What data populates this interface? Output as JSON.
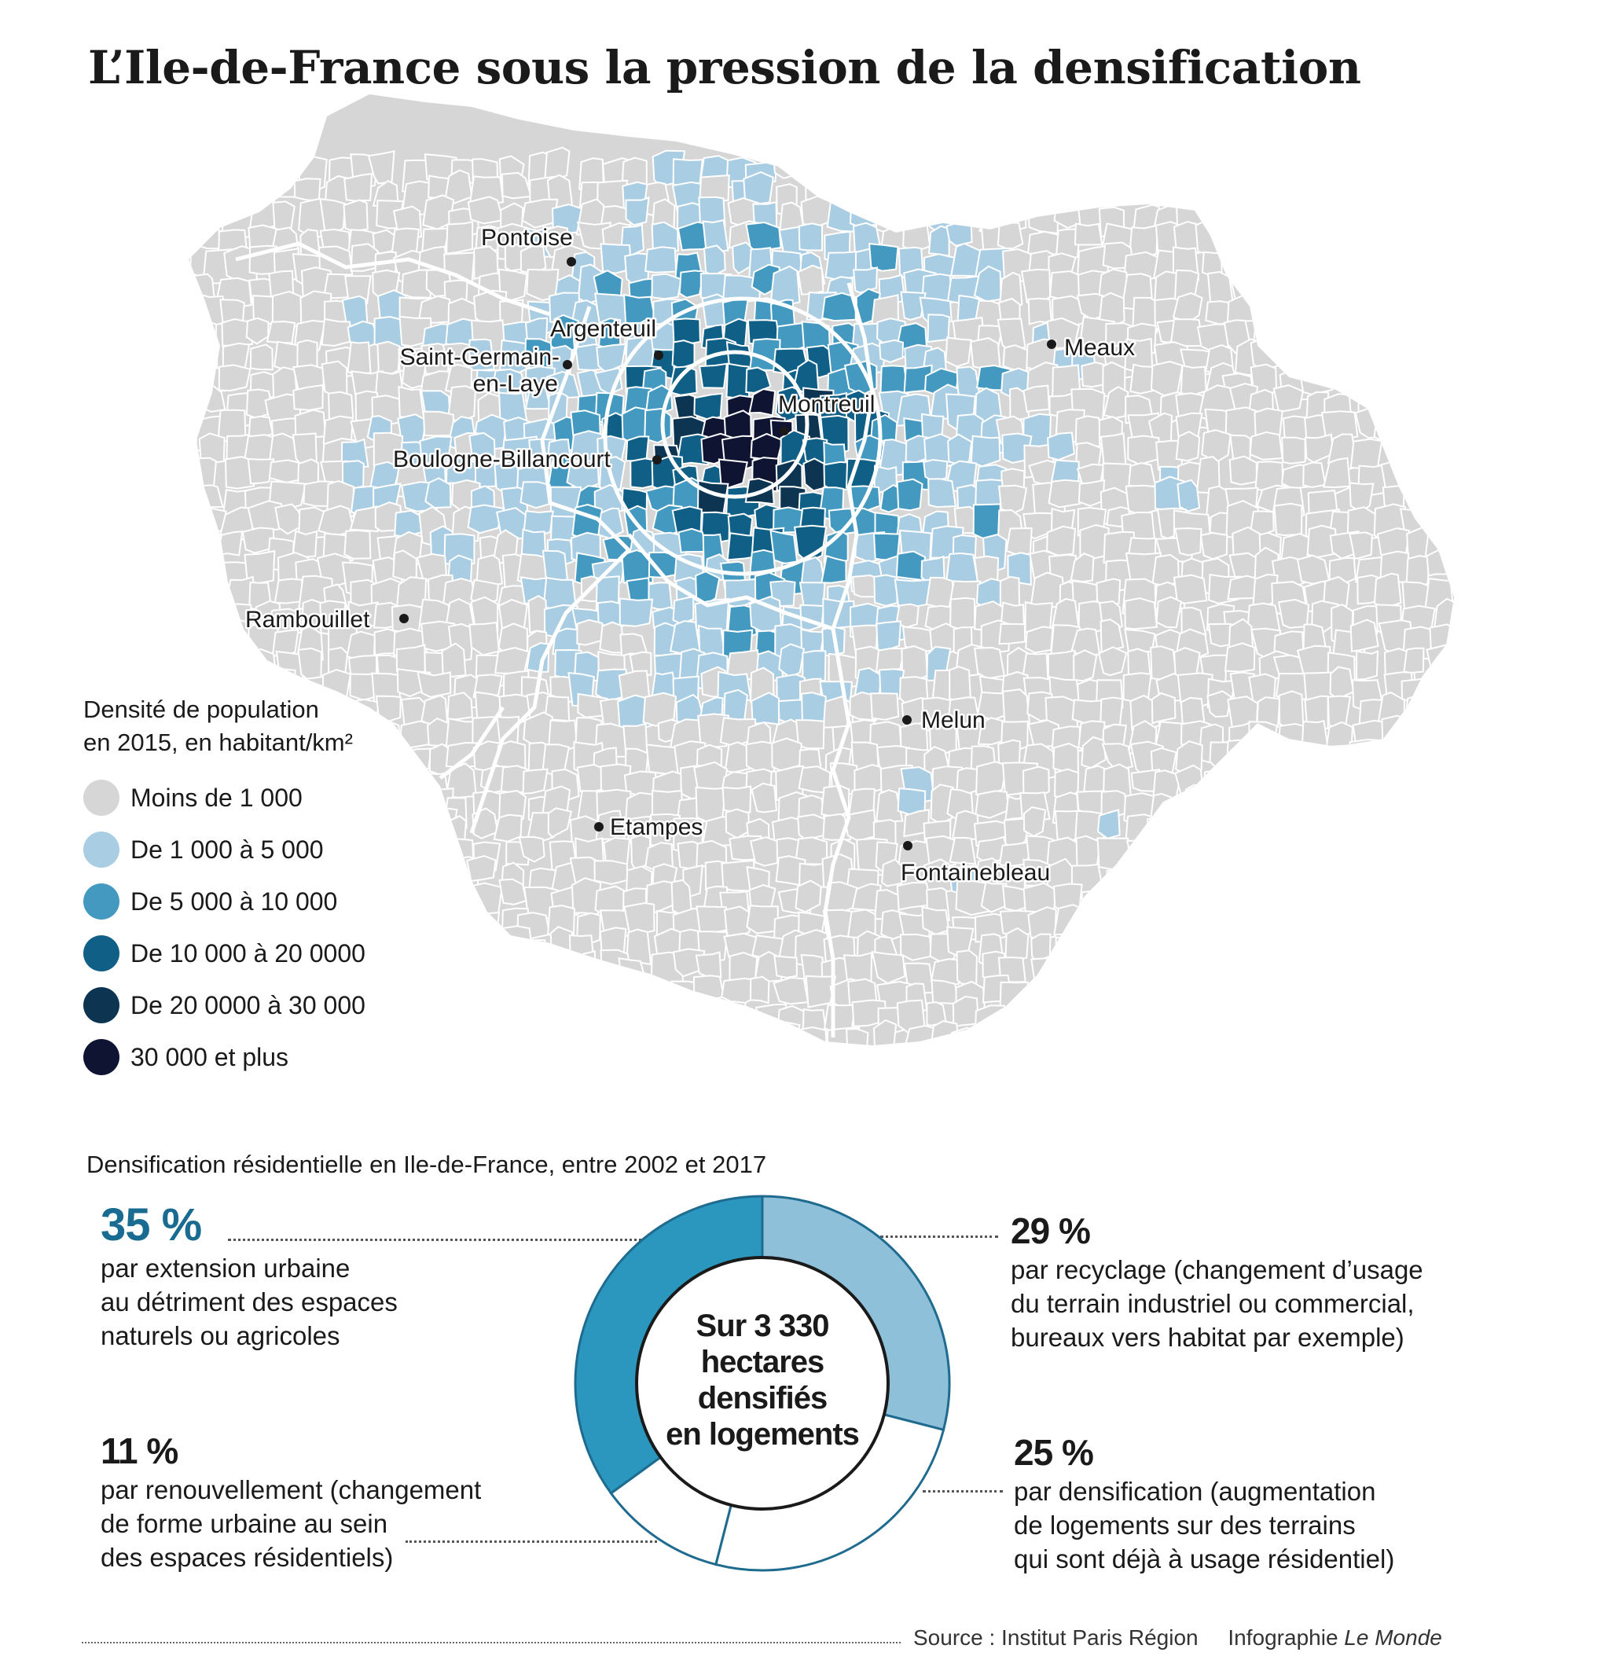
{
  "title": "L’Ile-de-France sous la pression de la densification",
  "colors": {
    "land": "#d6d6d6",
    "border": "#ffffff",
    "density": [
      "#d6d6d6",
      "#a9cde3",
      "#4399bf",
      "#0f5f87",
      "#0d3552",
      "#0f1433"
    ]
  },
  "cities": [
    {
      "name": "Pontoise"
    },
    {
      "name": "Argenteuil"
    },
    {
      "name": "Saint-Germain-\nen-Laye"
    },
    {
      "name": "Montreuil"
    },
    {
      "name": "Boulogne-Billancourt"
    },
    {
      "name": "Meaux"
    },
    {
      "name": "Rambouillet"
    },
    {
      "name": "Melun"
    },
    {
      "name": "Etampes"
    },
    {
      "name": "Fontainebleau"
    }
  ],
  "legend": {
    "title_line1": "Densité de population",
    "title_line2": "en 2015, en habitant/km²",
    "items": [
      {
        "label": "Moins de 1 000",
        "color": "#d6d6d6"
      },
      {
        "label": "De 1 000 à 5 000",
        "color": "#a9cde3"
      },
      {
        "label": "De 5 000 à 10 000",
        "color": "#4399bf"
      },
      {
        "label": "De 10 000 à 20 0000",
        "color": "#0f5f87"
      },
      {
        "label": "De  20 0000 à 30 000",
        "color": "#0d3552"
      },
      {
        "label": "30 000 et plus",
        "color": "#0f1433"
      }
    ]
  },
  "densification": {
    "subtitle": "Densification résidentielle en Ile-de-France, entre 2002 et 2017",
    "center_lines": [
      "Sur 3 330",
      "hectares",
      "densifiés",
      "en logements"
    ],
    "segments": [
      {
        "pct": "35 %",
        "value": 35,
        "color": "#2b97be",
        "lines": [
          "par extension urbaine",
          "au détriment des espaces",
          "naturels ou agricoles"
        ]
      },
      {
        "pct": "29 %",
        "value": 29,
        "color": "#8fc0d9",
        "lines": [
          "par recyclage (changement d’usage",
          "du terrain industriel ou commercial,",
          "bureaux vers habitat par exemple)"
        ]
      },
      {
        "pct": "25 %",
        "value": 25,
        "color": "#ffffff",
        "lines": [
          "par densification (augmentation",
          "de logements sur des terrains",
          "qui sont déjà à usage résidentiel)"
        ]
      },
      {
        "pct": "11 %",
        "value": 11,
        "color": "#ffffff",
        "lines": [
          "par renouvellement (changement",
          "de forme urbaine au sein",
          "des espaces résidentiels)"
        ]
      }
    ],
    "ring_stroke": "#1f6b8f"
  },
  "footer": {
    "source": "Source : Institut Paris Région",
    "credit_prefix": "Infographie ",
    "credit_name": "Le Monde"
  }
}
